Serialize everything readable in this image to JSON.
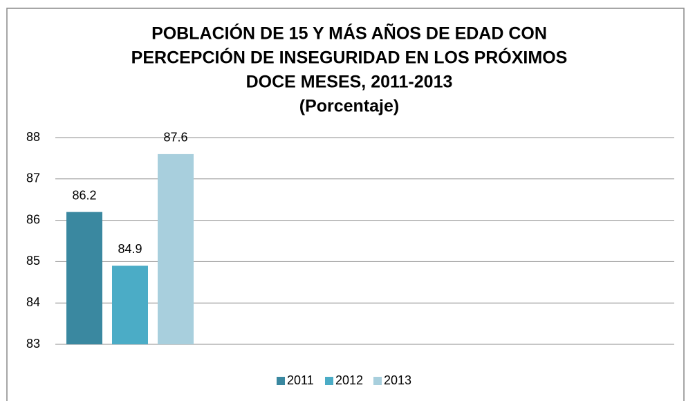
{
  "chart_data": {
    "type": "bar",
    "title": [
      "POBLACIÓN DE 15 Y MÁS AÑOS DE EDAD CON",
      "PERCEPCIÓN DE INSEGURIDAD EN LOS PRÓXIMOS",
      "DOCE MESES, 2011-2013"
    ],
    "subtitle": "(Porcentaje)",
    "series": [
      {
        "name": "2011",
        "color": "#3a88a0",
        "values": [
          86.2
        ]
      },
      {
        "name": "2012",
        "color": "#4bacc6",
        "values": [
          84.9
        ]
      },
      {
        "name": "2013",
        "color": "#a8cfdd",
        "values": [
          87.6
        ]
      }
    ],
    "ylim": [
      83,
      88
    ],
    "yticks": [
      83,
      84,
      85,
      86,
      87,
      88
    ],
    "grid": true,
    "legend": "bottom"
  }
}
